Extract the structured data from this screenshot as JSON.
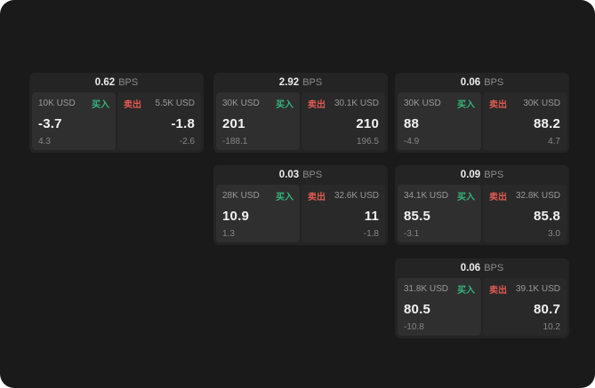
{
  "colors": {
    "background": "#1a1a1a",
    "card_background": "#242424",
    "buy_green": "#35b57c",
    "sell_red": "#e05a52"
  },
  "bps_unit": "BPS",
  "cards": [
    {
      "bps_value": "0.62",
      "buy": {
        "amount": "10K USD",
        "side_label": "买入",
        "price": "-3.7",
        "delta": "4.3"
      },
      "sell": {
        "amount": "5.5K USD",
        "side_label": "卖出",
        "price": "-1.8",
        "delta": "-2.6"
      }
    },
    {
      "bps_value": "2.92",
      "buy": {
        "amount": "30K USD",
        "side_label": "买入",
        "price": "201",
        "delta": "-188.1"
      },
      "sell": {
        "amount": "30.1K USD",
        "side_label": "卖出",
        "price": "210",
        "delta": "196.5"
      }
    },
    {
      "bps_value": "0.06",
      "buy": {
        "amount": "30K USD",
        "side_label": "买入",
        "price": "88",
        "delta": "-4.9"
      },
      "sell": {
        "amount": "30K USD",
        "side_label": "卖出",
        "price": "88.2",
        "delta": "4.7"
      }
    },
    {
      "bps_value": "0.03",
      "buy": {
        "amount": "28K USD",
        "side_label": "买入",
        "price": "10.9",
        "delta": "1.3"
      },
      "sell": {
        "amount": "32.6K USD",
        "side_label": "卖出",
        "price": "11",
        "delta": "-1.8"
      }
    },
    {
      "bps_value": "0.09",
      "buy": {
        "amount": "34.1K USD",
        "side_label": "买入",
        "price": "85.5",
        "delta": "-3.1"
      },
      "sell": {
        "amount": "32.8K USD",
        "side_label": "卖出",
        "price": "85.8",
        "delta": "3.0"
      }
    },
    {
      "bps_value": "0.06",
      "buy": {
        "amount": "31.8K USD",
        "side_label": "买入",
        "price": "80.5",
        "delta": "-10.8"
      },
      "sell": {
        "amount": "39.1K USD",
        "side_label": "卖出",
        "price": "80.7",
        "delta": "10.2"
      }
    }
  ]
}
